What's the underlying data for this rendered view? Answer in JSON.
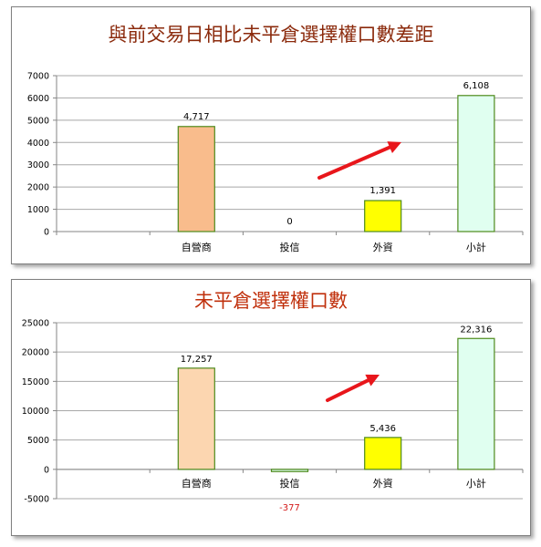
{
  "chart_data": [
    {
      "type": "bar",
      "title": "與前交易日相比未平倉選擇權口數差距",
      "title_color": "#8b2a0c",
      "categories": [
        "",
        "自營商",
        "投信",
        "外資",
        "小計"
      ],
      "values": [
        null,
        4717,
        0,
        1391,
        6108
      ],
      "value_labels": [
        "",
        "4,717",
        "0",
        "1,391",
        "6,108"
      ],
      "bar_colors": [
        "",
        "#f9bc8c",
        "#ffffff",
        "#ffff00",
        "#e0fff0"
      ],
      "bar_border_color": "#4e8a1c",
      "ylim": [
        0,
        7000
      ],
      "yticks": [
        0,
        1000,
        2000,
        3000,
        4000,
        5000,
        6000,
        7000
      ],
      "ytick_labels": [
        "0",
        "1000",
        "2000",
        "3000",
        "4000",
        "5000",
        "6000",
        "7000"
      ],
      "xlabel": "",
      "ylabel": "",
      "grid": true,
      "legend": "none",
      "annotation": "red arrow pointing up-right between 投信 and 外資"
    },
    {
      "type": "bar",
      "title": "未平倉選擇權口數",
      "title_color": "#c0300c",
      "categories": [
        "",
        "自營商",
        "投信",
        "外資",
        "小計"
      ],
      "values": [
        null,
        17257,
        -377,
        5436,
        22316
      ],
      "value_labels": [
        "",
        "17,257",
        "-377",
        "5,436",
        "22,316"
      ],
      "bar_colors": [
        "",
        "#fcd6b0",
        "#e0fff0",
        "#ffff00",
        "#e0fff0"
      ],
      "bar_border_color": "#4e8a1c",
      "negative_label_color": "#d41b1b",
      "ylim": [
        -5000,
        25000
      ],
      "yticks": [
        -5000,
        0,
        5000,
        10000,
        15000,
        20000,
        25000
      ],
      "ytick_labels": [
        "-5000",
        "0",
        "5000",
        "10000",
        "15000",
        "20000",
        "25000"
      ],
      "xlabel": "",
      "ylabel": "",
      "grid": true,
      "legend": "none",
      "annotation": "red arrow pointing up-right between 投信 and 外資"
    }
  ],
  "arrow_color": "#e8161b",
  "axis_color": "#868686",
  "grid_color": "#a8a8a8"
}
